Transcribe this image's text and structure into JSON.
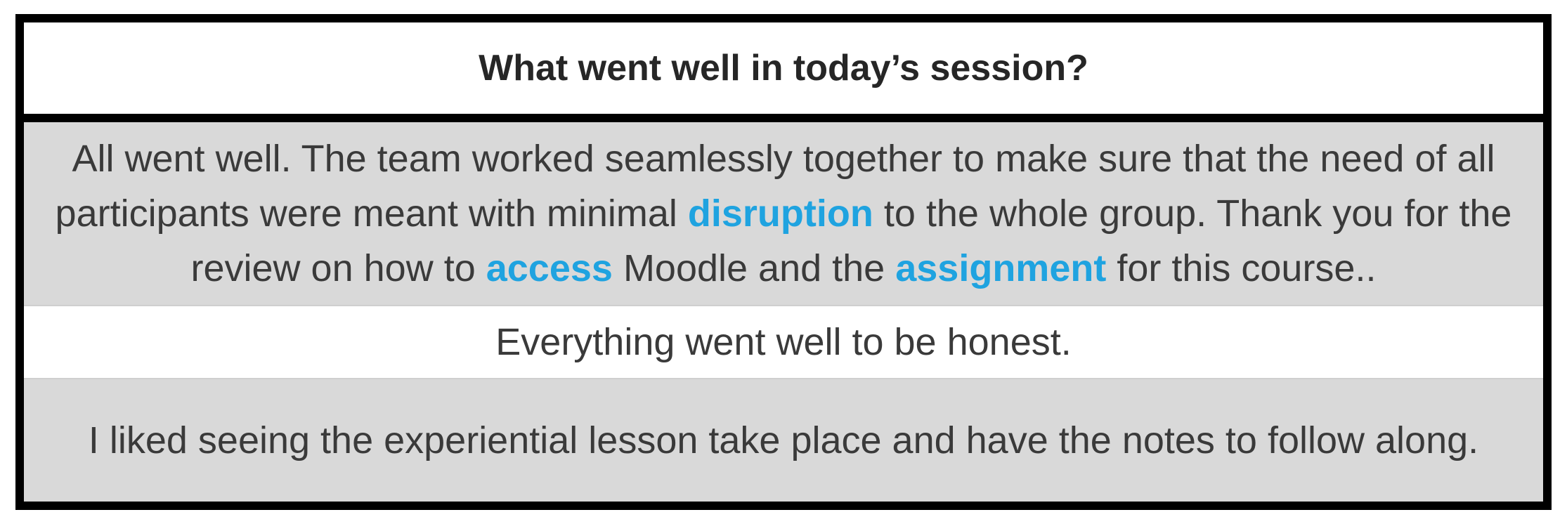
{
  "table": {
    "header": "What went well in today’s session?",
    "responses": [
      {
        "segments": [
          {
            "text": "All went well. The team worked seamlessly together to make sure that the need of all participants were meant with minimal ",
            "highlight": false
          },
          {
            "text": "disruption",
            "highlight": true
          },
          {
            "text": " to the whole group. Thank you for the review on how to ",
            "highlight": false
          },
          {
            "text": "access",
            "highlight": true
          },
          {
            "text": " Moodle and the ",
            "highlight": false
          },
          {
            "text": "assignment",
            "highlight": true
          },
          {
            "text": " for this course..",
            "highlight": false
          }
        ],
        "shaded": true
      },
      {
        "segments": [
          {
            "text": "Everything went well to be honest.",
            "highlight": false
          }
        ],
        "shaded": false
      },
      {
        "segments": [
          {
            "text": "I liked seeing the experiential lesson take place and have the notes to follow along.",
            "highlight": false
          }
        ],
        "shaded": true
      }
    ]
  },
  "colors": {
    "highlight": "#1fa3e0",
    "shaded_row": "#d9d9d9",
    "border": "#000000",
    "text": "#3a3a3a"
  }
}
